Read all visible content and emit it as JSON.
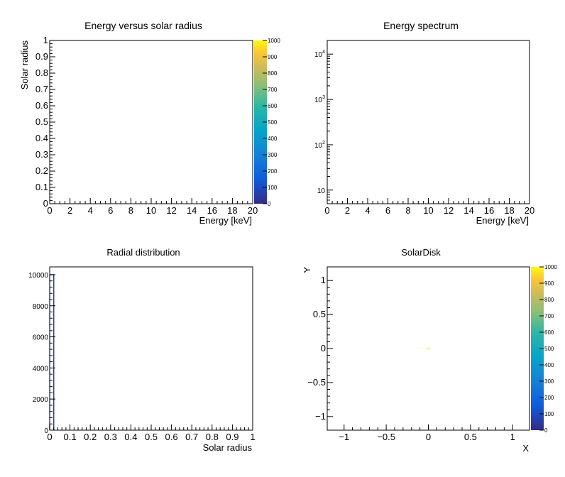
{
  "chart_data": [
    {
      "type": "heatmap",
      "title": "Energy versus solar radius",
      "xlabel": "Energy [keV]",
      "ylabel": "Solar radius",
      "xlim": [
        0,
        20
      ],
      "ylim": [
        0,
        1
      ],
      "xticks": [
        "0",
        "2",
        "4",
        "6",
        "8",
        "10",
        "12",
        "14",
        "16",
        "18",
        "20"
      ],
      "yticks": [
        "0",
        "0.1",
        "0.2",
        "0.3",
        "0.4",
        "0.5",
        "0.6",
        "0.7",
        "0.8",
        "0.9",
        "1"
      ],
      "colorbar": {
        "range": [
          0,
          1000
        ],
        "ticks": [
          "0",
          "100",
          "200",
          "300",
          "400",
          "500",
          "600",
          "700",
          "800",
          "900",
          "1000"
        ]
      },
      "grid": false
    },
    {
      "type": "bar",
      "title": "Energy spectrum",
      "xlabel": "Energy [keV]",
      "ylabel": "",
      "xlim": [
        0,
        20
      ],
      "y_scale": "log",
      "ylim": [
        5,
        20000
      ],
      "xticks": [
        "0",
        "2",
        "4",
        "6",
        "8",
        "10",
        "12",
        "14",
        "16",
        "18",
        "20"
      ],
      "yticks": [
        {
          "base": "10",
          "exp": ""
        },
        {
          "base": "10",
          "exp": "2"
        },
        {
          "base": "10",
          "exp": "3"
        },
        {
          "base": "10",
          "exp": "4"
        }
      ],
      "grid": false
    },
    {
      "type": "bar",
      "title": "Radial distribution",
      "xlabel": "Solar radius",
      "ylabel": "",
      "xlim": [
        0,
        1
      ],
      "ylim": [
        0,
        10500
      ],
      "xticks": [
        "0",
        "0.1",
        "0.2",
        "0.3",
        "0.4",
        "0.5",
        "0.6",
        "0.7",
        "0.8",
        "0.9",
        "1"
      ],
      "yticks": [
        "0",
        "2000",
        "4000",
        "6000",
        "8000",
        "10000"
      ],
      "bins": [
        {
          "x0": 0,
          "x1": 0.02,
          "value": 10000
        }
      ],
      "grid": false
    },
    {
      "type": "heatmap",
      "title": "SolarDisk",
      "xlabel": "X",
      "ylabel": "Y",
      "xlim": [
        -1.2,
        1.2
      ],
      "ylim": [
        -1.2,
        1.2
      ],
      "xticks": [
        "−1",
        "−0.5",
        "0",
        "0.5",
        "1"
      ],
      "yticks": [
        "−1",
        "−0.5",
        "0",
        "0.5",
        "1"
      ],
      "points": [
        {
          "x": 0,
          "y": 0,
          "value": 1000
        }
      ],
      "colorbar": {
        "range": [
          0,
          1000
        ],
        "ticks": [
          "0",
          "100",
          "200",
          "300",
          "400",
          "500",
          "600",
          "700",
          "800",
          "900",
          "1000"
        ]
      },
      "grid": false
    }
  ]
}
